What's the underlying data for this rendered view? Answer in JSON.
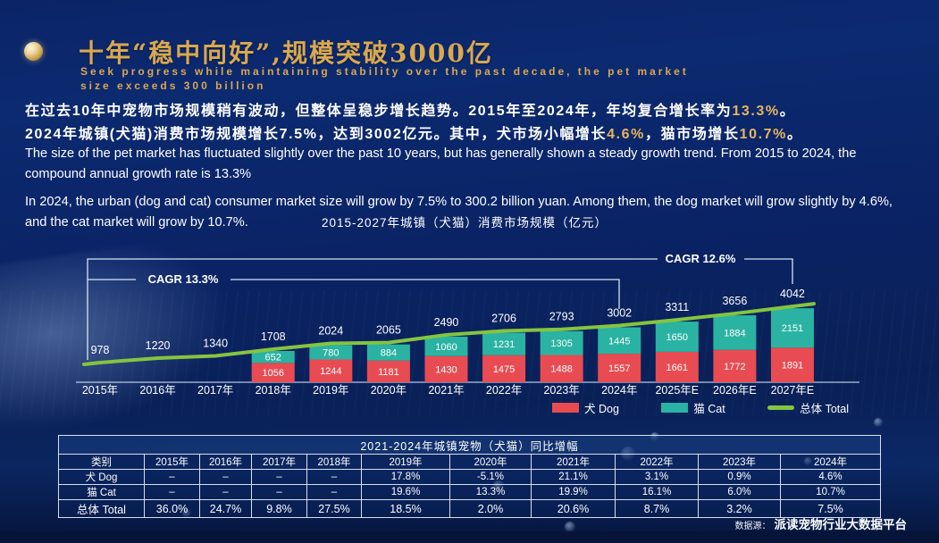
{
  "header": {
    "title": "十年“稳中向好”,规模突破3000亿",
    "subtitle_line1": "Seek progress while maintaining stability over the past decade, the pet market",
    "subtitle_line2": "size exceeds 300 billion",
    "icon": "gold-pearl-icon",
    "title_color": "#d9a84f"
  },
  "intro": {
    "cn_line1_pre": "在过去10年中宠物市场规模稍有波动，但整体呈稳步增长趋势。2015年至2024年，年均复合增长率为",
    "cn_line1_hl": "13.3%",
    "cn_line1_post": "。",
    "cn_line2_pre": "2024年城镇(犬猫)消费市场规模增长7.5%，达到3002亿元。其中，犬市场小幅增长",
    "cn_line2_hl1": "4.6%",
    "cn_line2_mid": "，猫市场增长",
    "cn_line2_hl2": "10.7%",
    "cn_line2_post": "。",
    "en_para1": "The size of the pet market has fluctuated slightly over the past 10 years, but has generally shown a steady growth trend. From 2015 to 2024, the compound annual growth rate is 13.3%",
    "en_para2": "In 2024, the urban (dog and cat) consumer market size will grow by 7.5% to 300.2 billion yuan. Among them, the dog market will grow slightly by 4.6%, and the cat market will grow by 10.7%."
  },
  "chart": {
    "title": "2015-2027年城镇（犬猫）消费市场规模（亿元）",
    "cagr_left_label": "CAGR 13.3%",
    "cagr_right_label": "CAGR 12.6%",
    "legend": [
      {
        "label": "犬 Dog",
        "color": "#e84c52",
        "type": "bar"
      },
      {
        "label": "猫 Cat",
        "color": "#2ab3a2",
        "type": "bar"
      },
      {
        "label": "总体 Total",
        "color": "#85c440",
        "type": "line"
      }
    ]
  },
  "chart_data": {
    "type": "bar",
    "subtype": "stacked-bar-with-line",
    "title": "2015-2027年城镇（犬猫）消费市场规模（亿元）",
    "categories": [
      "2015年",
      "2016年",
      "2017年",
      "2018年",
      "2019年",
      "2020年",
      "2021年",
      "2022年",
      "2023年",
      "2024年",
      "2025年E",
      "2026年E",
      "2027年E"
    ],
    "series": [
      {
        "name": "犬 Dog",
        "type": "bar",
        "color": "#e84c52",
        "values": [
          null,
          null,
          null,
          1056,
          1244,
          1181,
          1430,
          1475,
          1488,
          1557,
          1661,
          1772,
          1891
        ]
      },
      {
        "name": "猫 Cat",
        "type": "bar",
        "color": "#2ab3a2",
        "values": [
          null,
          null,
          null,
          652,
          780,
          884,
          1060,
          1231,
          1305,
          1445,
          1650,
          1884,
          2151
        ]
      },
      {
        "name": "总体 Total",
        "type": "line",
        "color": "#85c440",
        "values": [
          978,
          1220,
          1340,
          1708,
          2024,
          2065,
          2490,
          2706,
          2793,
          3002,
          3311,
          3656,
          4042
        ]
      }
    ],
    "annotations": [
      {
        "label": "CAGR 13.3%",
        "from": "2015年",
        "to": "2024年"
      },
      {
        "label": "CAGR 12.6%",
        "from": "2015年",
        "to": "2027年E"
      }
    ],
    "ylabel": "亿元",
    "grid": false,
    "legend_position": "bottom"
  },
  "table": {
    "title": "2021-2024年城镇宠物（犬猫）同比增幅",
    "columns": [
      "类别",
      "2015年",
      "2016年",
      "2017年",
      "2018年",
      "2019年",
      "2020年",
      "2021年",
      "2022年",
      "2023年",
      "2024年"
    ],
    "rows": [
      {
        "label": "犬 Dog",
        "values": [
          "–",
          "–",
          "–",
          "–",
          "17.8%",
          "-5.1%",
          "21.1%",
          "3.1%",
          "0.9%",
          "4.6%"
        ]
      },
      {
        "label": "猫 Cat",
        "values": [
          "–",
          "–",
          "–",
          "–",
          "19.6%",
          "13.3%",
          "19.9%",
          "16.1%",
          "6.0%",
          "10.7%"
        ]
      },
      {
        "label": "总体 Total",
        "values": [
          "36.0%",
          "24.7%",
          "9.8%",
          "27.5%",
          "18.5%",
          "2.0%",
          "20.6%",
          "8.7%",
          "3.2%",
          "7.5%"
        ]
      }
    ]
  },
  "footer": {
    "source_label": "数据源：",
    "source_name": "派读宠物行业大数据平台"
  },
  "colors": {
    "background": "#0a2365",
    "gold": "#d9a84f",
    "highlight_gold": "#e5b55e",
    "dog_red": "#e84c52",
    "cat_teal": "#2ab3a2",
    "total_green": "#85c440",
    "table_border": "#ecf3fc"
  }
}
